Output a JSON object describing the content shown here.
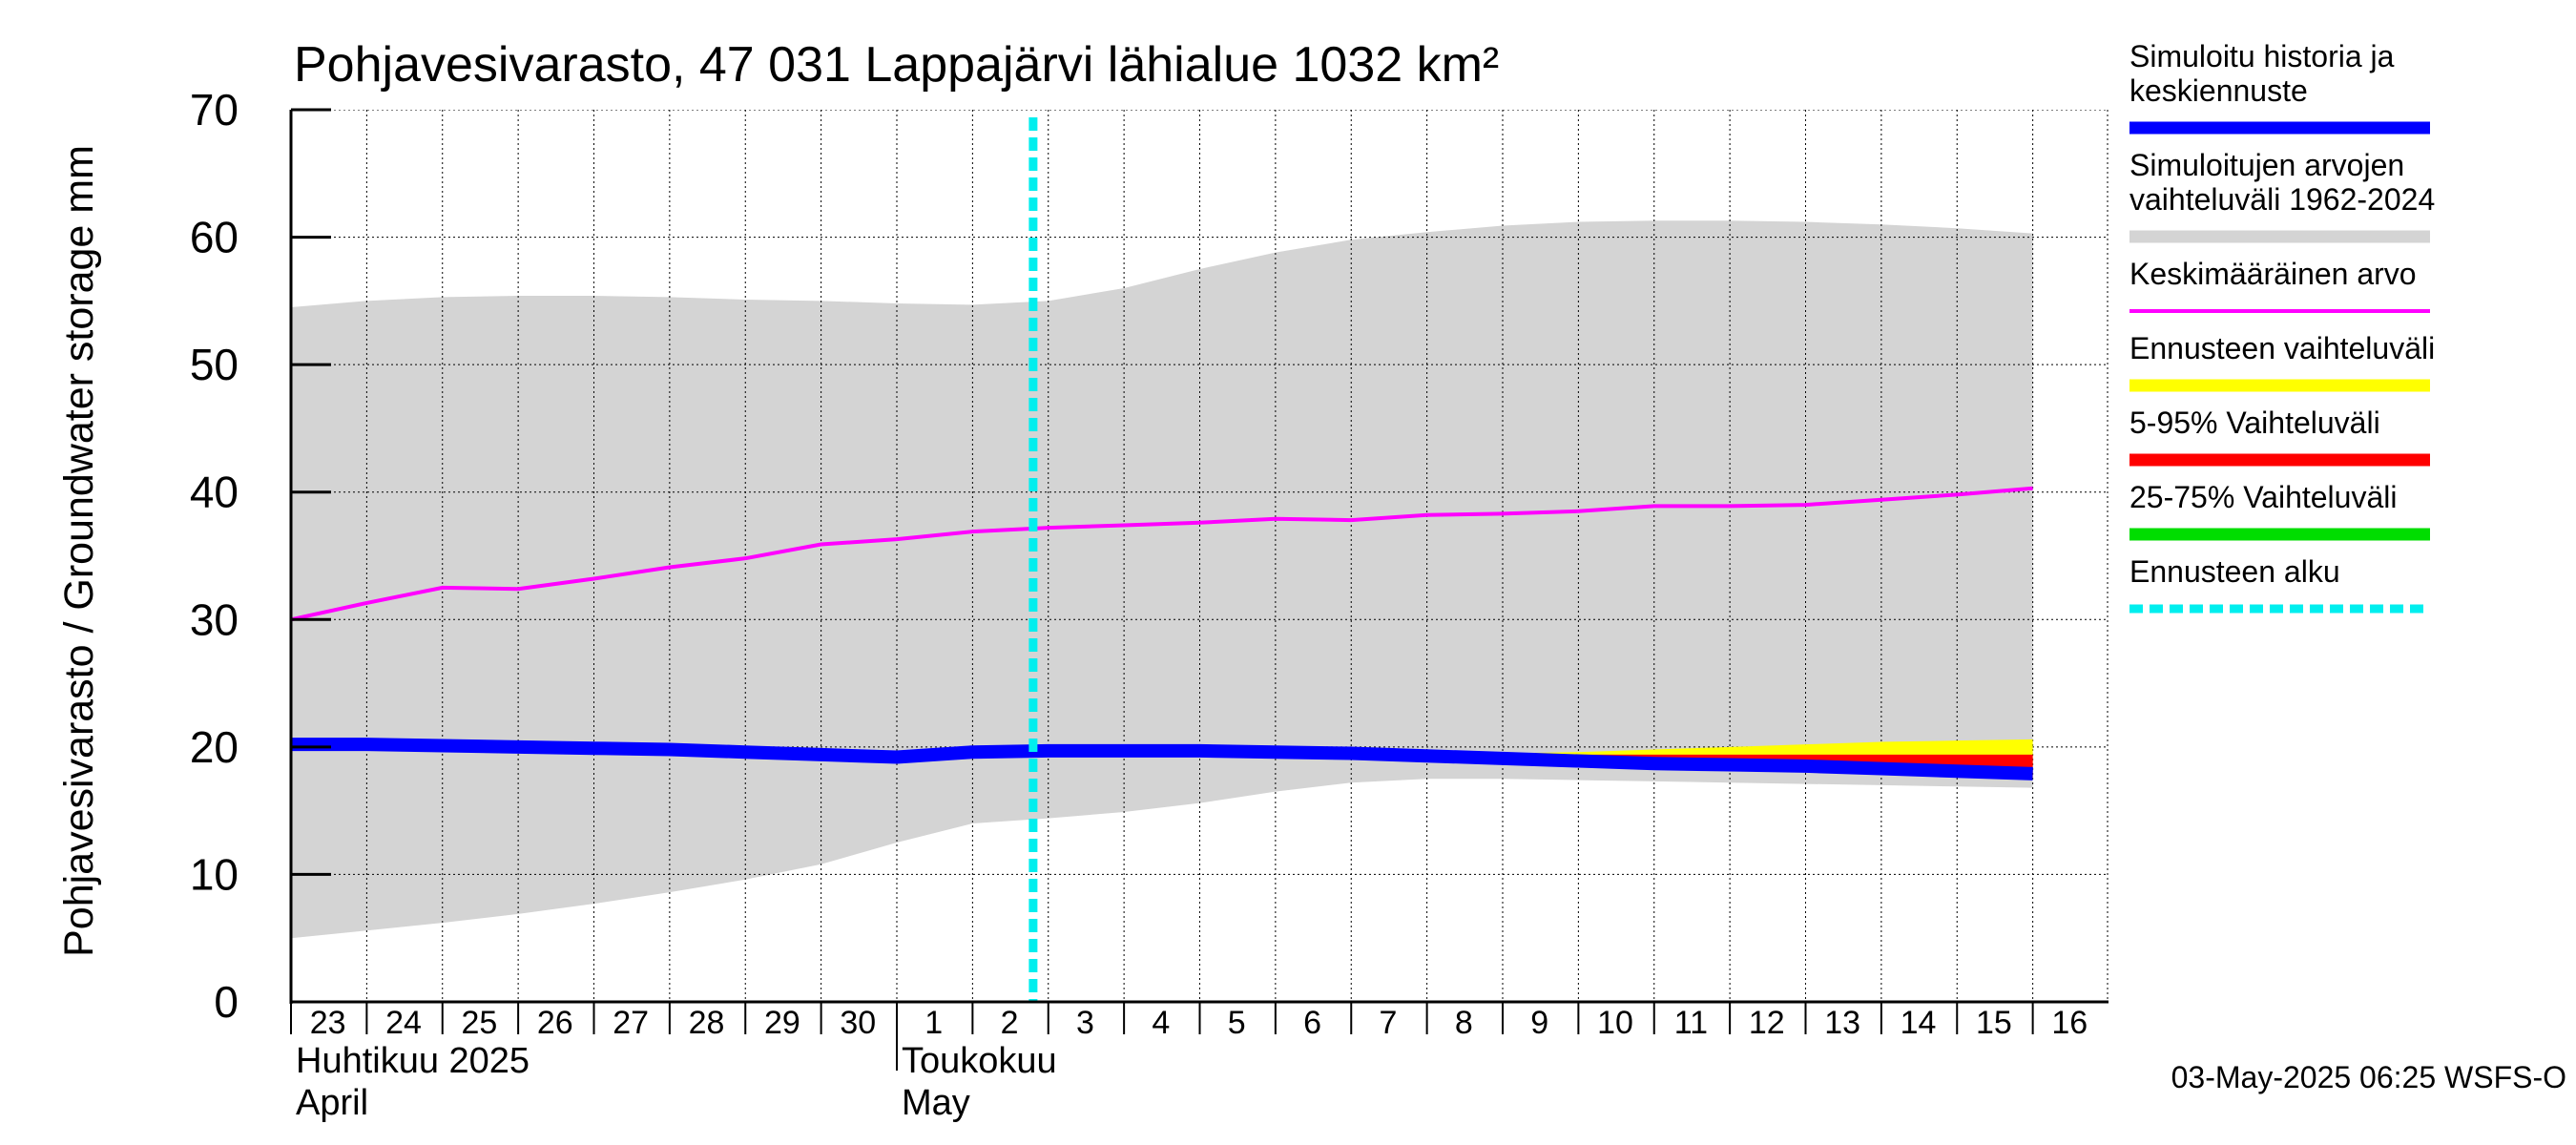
{
  "chart_data": {
    "type": "line",
    "title": "Pohjavesivarasto, 47 031 Lappajärvi lähialue 1032 km²",
    "ylabel": "Pohjavesivarasto / Groundwater storage   mm",
    "ylim": [
      0,
      70
    ],
    "yticks": [
      0,
      10,
      20,
      30,
      40,
      50,
      60,
      70
    ],
    "grid": true,
    "x": [
      "23",
      "24",
      "25",
      "26",
      "27",
      "28",
      "29",
      "30",
      "1",
      "2",
      "3",
      "4",
      "5",
      "6",
      "7",
      "8",
      "9",
      "10",
      "11",
      "12",
      "13",
      "14",
      "15",
      "16"
    ],
    "month_labels": [
      {
        "at": "23",
        "fi": "Huhtikuu  2025",
        "en": "April"
      },
      {
        "at": "1",
        "fi": "Toukokuu",
        "en": "May"
      }
    ],
    "forecast_start": "3",
    "series": [
      {
        "name": "Simuloitujen arvojen vaihteluväli 1962-2024",
        "kind": "band",
        "color": "#d4d4d4",
        "upper": [
          54.5,
          55.0,
          55.3,
          55.4,
          55.4,
          55.3,
          55.1,
          55.0,
          54.8,
          54.7,
          55.0,
          56.0,
          57.5,
          58.8,
          59.8,
          60.4,
          60.9,
          61.2,
          61.3,
          61.3,
          61.2,
          61.0,
          60.7,
          60.3
        ],
        "lower": [
          5.0,
          5.6,
          6.2,
          6.9,
          7.7,
          8.6,
          9.6,
          10.8,
          12.5,
          14.0,
          14.4,
          14.9,
          15.6,
          16.5,
          17.2,
          17.5,
          17.5,
          17.4,
          17.3,
          17.2,
          17.1,
          17.0,
          16.9,
          16.8
        ]
      },
      {
        "name": "Ennusteen vaihteluväli",
        "kind": "band",
        "color": "#ffff00",
        "start": "3",
        "upper": [
          19.8,
          19.8,
          19.8,
          19.7,
          19.6,
          19.5,
          19.5,
          19.6,
          19.8,
          20.0,
          20.2,
          20.4,
          20.5,
          20.6
        ],
        "lower": [
          19.8,
          19.8,
          19.7,
          19.6,
          19.5,
          19.3,
          19.0,
          18.8,
          18.6,
          18.4,
          18.2,
          18.0,
          17.8,
          17.5
        ]
      },
      {
        "name": "5-95% Vaihteluväli",
        "kind": "band",
        "color": "#ff0000",
        "start": "3",
        "upper": [
          19.8,
          19.8,
          19.8,
          19.7,
          19.6,
          19.5,
          19.4,
          19.4,
          19.4,
          19.4,
          19.4,
          19.4,
          19.4,
          19.4
        ],
        "lower": [
          19.8,
          19.8,
          19.7,
          19.6,
          19.5,
          19.3,
          19.1,
          18.9,
          18.7,
          18.5,
          18.3,
          18.1,
          17.9,
          17.6
        ]
      },
      {
        "name": "25-75% Vaihteluväli",
        "kind": "band",
        "color": "#00cc00",
        "start": "3",
        "upper": [
          19.8,
          19.8,
          19.8,
          19.7,
          19.6,
          19.5,
          19.3,
          19.1,
          18.9,
          18.8,
          18.7,
          18.6,
          18.5,
          18.4
        ],
        "lower": [
          19.8,
          19.8,
          19.7,
          19.6,
          19.5,
          19.3,
          19.1,
          18.9,
          18.7,
          18.6,
          18.5,
          18.4,
          18.3,
          18.2
        ]
      },
      {
        "name": "Keskimääräinen arvo",
        "kind": "line",
        "color": "#ff00ff",
        "values": [
          30.0,
          31.3,
          32.5,
          32.4,
          33.2,
          34.1,
          34.8,
          35.9,
          36.3,
          36.9,
          37.2,
          37.4,
          37.6,
          37.9,
          37.8,
          38.2,
          38.3,
          38.5,
          38.9,
          38.9,
          39.0,
          39.4,
          39.8,
          40.3
        ]
      },
      {
        "name": "Simuloitu historia ja keskiennuste",
        "kind": "line",
        "color": "#0000ff",
        "values": [
          20.2,
          20.2,
          20.1,
          20.0,
          19.9,
          19.8,
          19.6,
          19.4,
          19.2,
          19.6,
          19.7,
          19.7,
          19.7,
          19.6,
          19.5,
          19.3,
          19.1,
          18.9,
          18.7,
          18.6,
          18.5,
          18.3,
          18.1,
          17.9
        ]
      }
    ],
    "legend": [
      {
        "label": "Simuloitu historia ja\nkeskiennuste",
        "color": "#0000ff",
        "style": "thick"
      },
      {
        "label": "Simuloitujen arvojen\nvaihteluväli 1962-2024",
        "color": "#d4d4d4",
        "style": "thick"
      },
      {
        "label": "Keskimääräinen arvo",
        "color": "#ff00ff",
        "style": "thin"
      },
      {
        "label": "Ennusteen vaihteluväli",
        "color": "#ffff00",
        "style": "thick"
      },
      {
        "label": "5-95% Vaihteluväli",
        "color": "#ff0000",
        "style": "thick"
      },
      {
        "label": "25-75% Vaihteluväli",
        "color": "#00dd00",
        "style": "thick"
      },
      {
        "label": "Ennusteen alku",
        "color": "#00eeee",
        "style": "dashed"
      }
    ],
    "footer": "03-May-2025 06:25 WSFS-O"
  }
}
